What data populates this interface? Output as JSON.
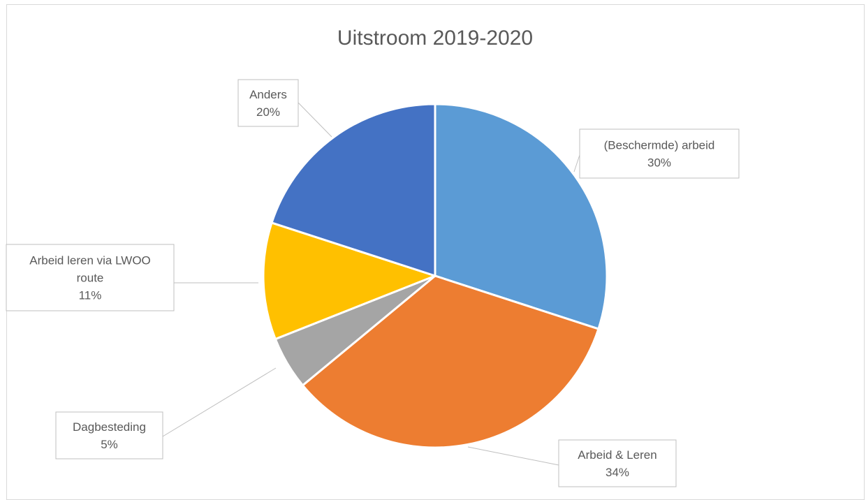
{
  "chart_data": {
    "type": "pie",
    "title": "Uitstroom 2019-2020",
    "slices": [
      {
        "name": "(Beschermde) arbeid",
        "value": 30,
        "label": "30%",
        "color": "#5b9bd5"
      },
      {
        "name": "Arbeid & Leren",
        "value": 34,
        "label": "34%",
        "color": "#ed7d31"
      },
      {
        "name": "Dagbesteding",
        "value": 5,
        "label": "5%",
        "color": "#a5a5a5"
      },
      {
        "name": "Arbeid leren via LWOO route",
        "value": 11,
        "label": "11%",
        "color": "#ffc000"
      },
      {
        "name": "Anders",
        "value": 20,
        "label": "20%",
        "color": "#4472c4"
      }
    ],
    "legend": "none",
    "start_angle": "top, clockwise"
  }
}
